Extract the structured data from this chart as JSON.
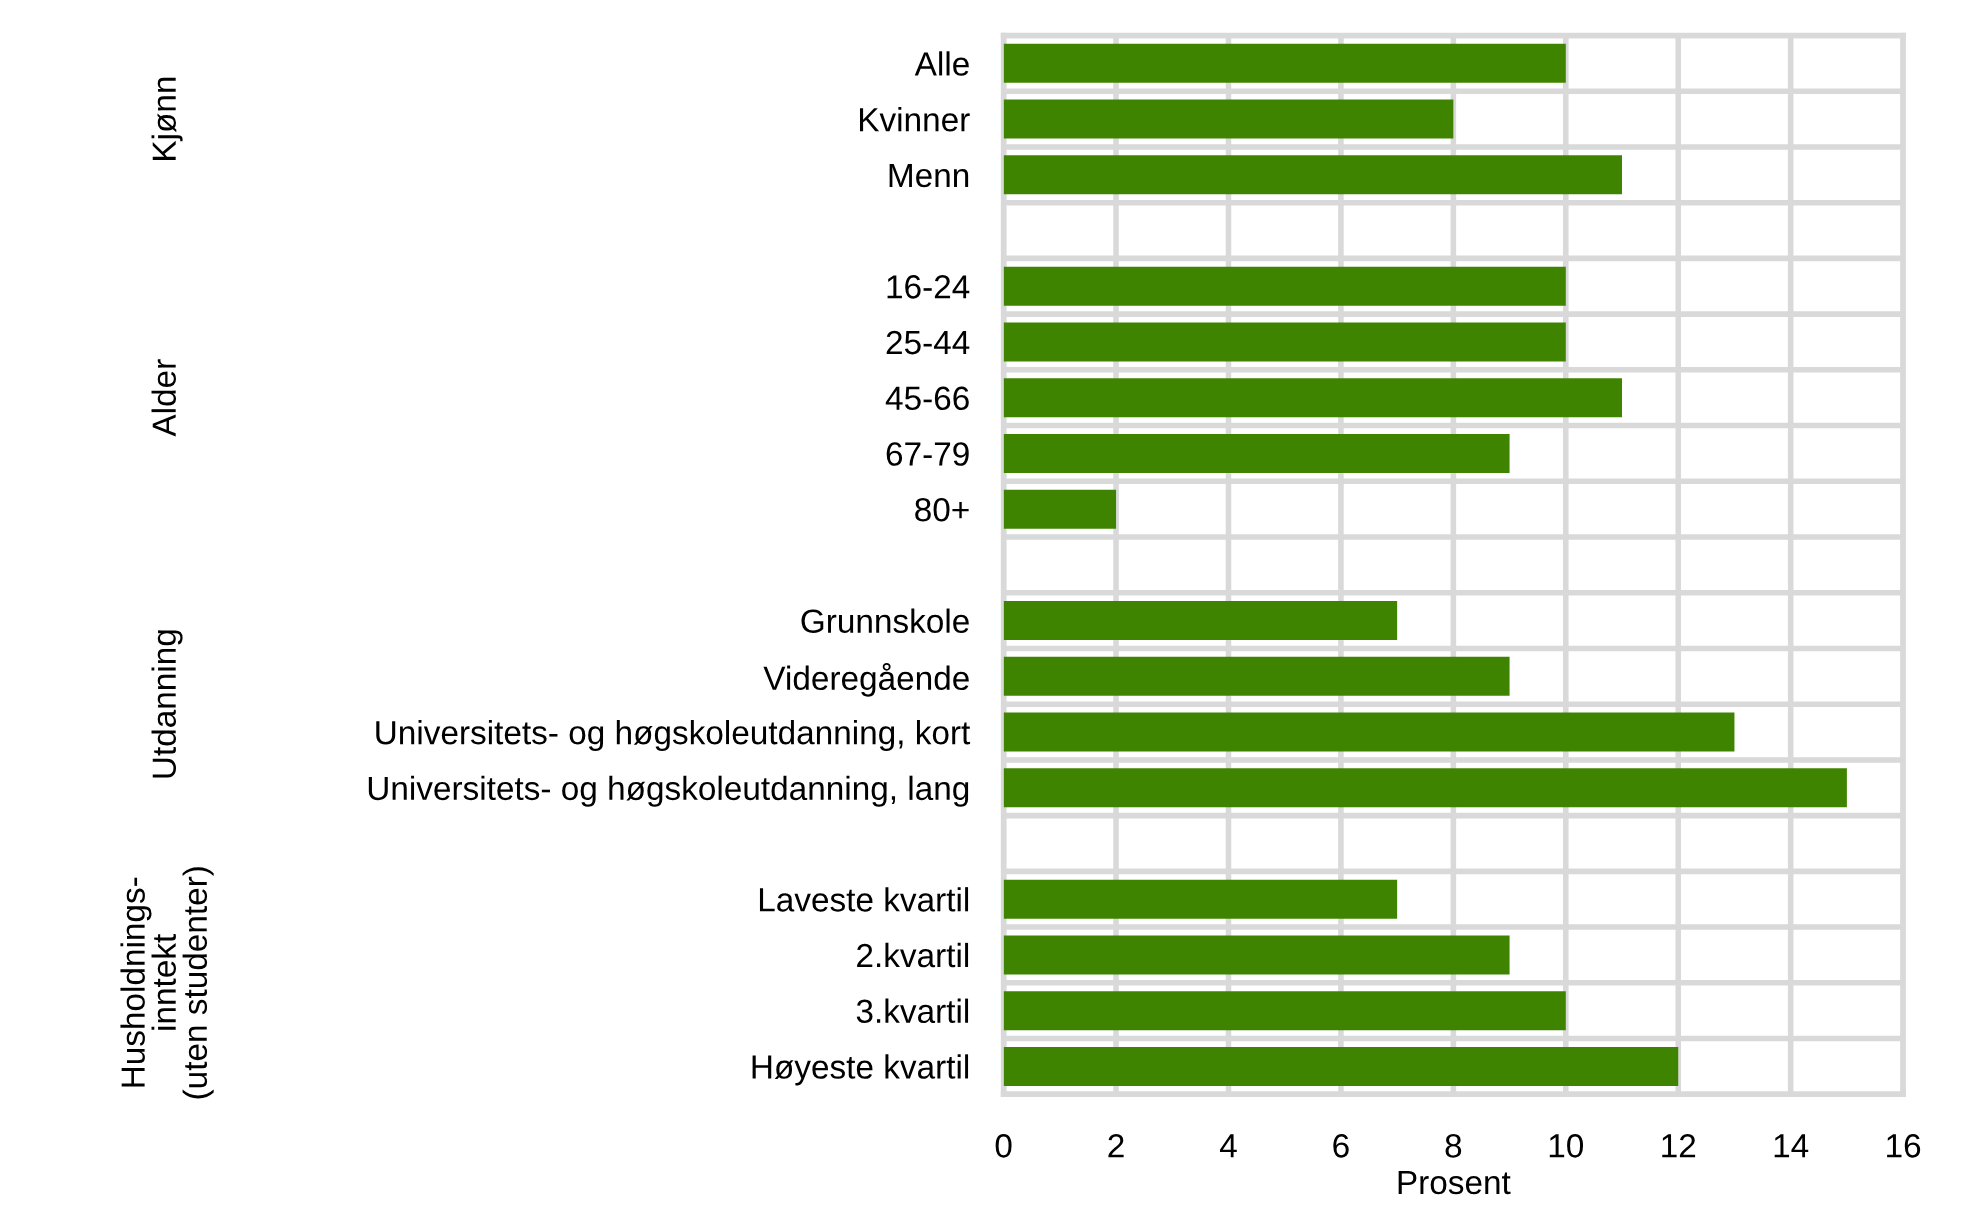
{
  "chart_data": {
    "type": "bar",
    "orientation": "horizontal",
    "xlabel": "Prosent",
    "categories": [
      "Alle",
      "Kvinner",
      "Menn",
      null,
      "16-24",
      "25-44",
      "45-66",
      "67-79",
      "80+",
      null,
      "Grunnskole",
      "Videregående",
      "Universitets- og høgskoleutdanning, kort",
      "Universitets- og høgskoleutdanning, lang",
      null,
      "Laveste kvartil",
      "2.kvartil",
      "3.kvartil",
      "Høyeste kvartil"
    ],
    "values": [
      10,
      8,
      11,
      null,
      10,
      10,
      11,
      9,
      2,
      null,
      7,
      9,
      13,
      15,
      null,
      7,
      9,
      10,
      12
    ],
    "color": "#3f8400",
    "xlim": [
      0,
      16
    ],
    "xticks": [
      0,
      2,
      4,
      6,
      8,
      10,
      12,
      14,
      16
    ],
    "grid": true,
    "annotations": [
      "Kjønn",
      "Alder",
      "Utdanning",
      "Husholdnings-\ninntekt\n(uten studenter)"
    ]
  }
}
